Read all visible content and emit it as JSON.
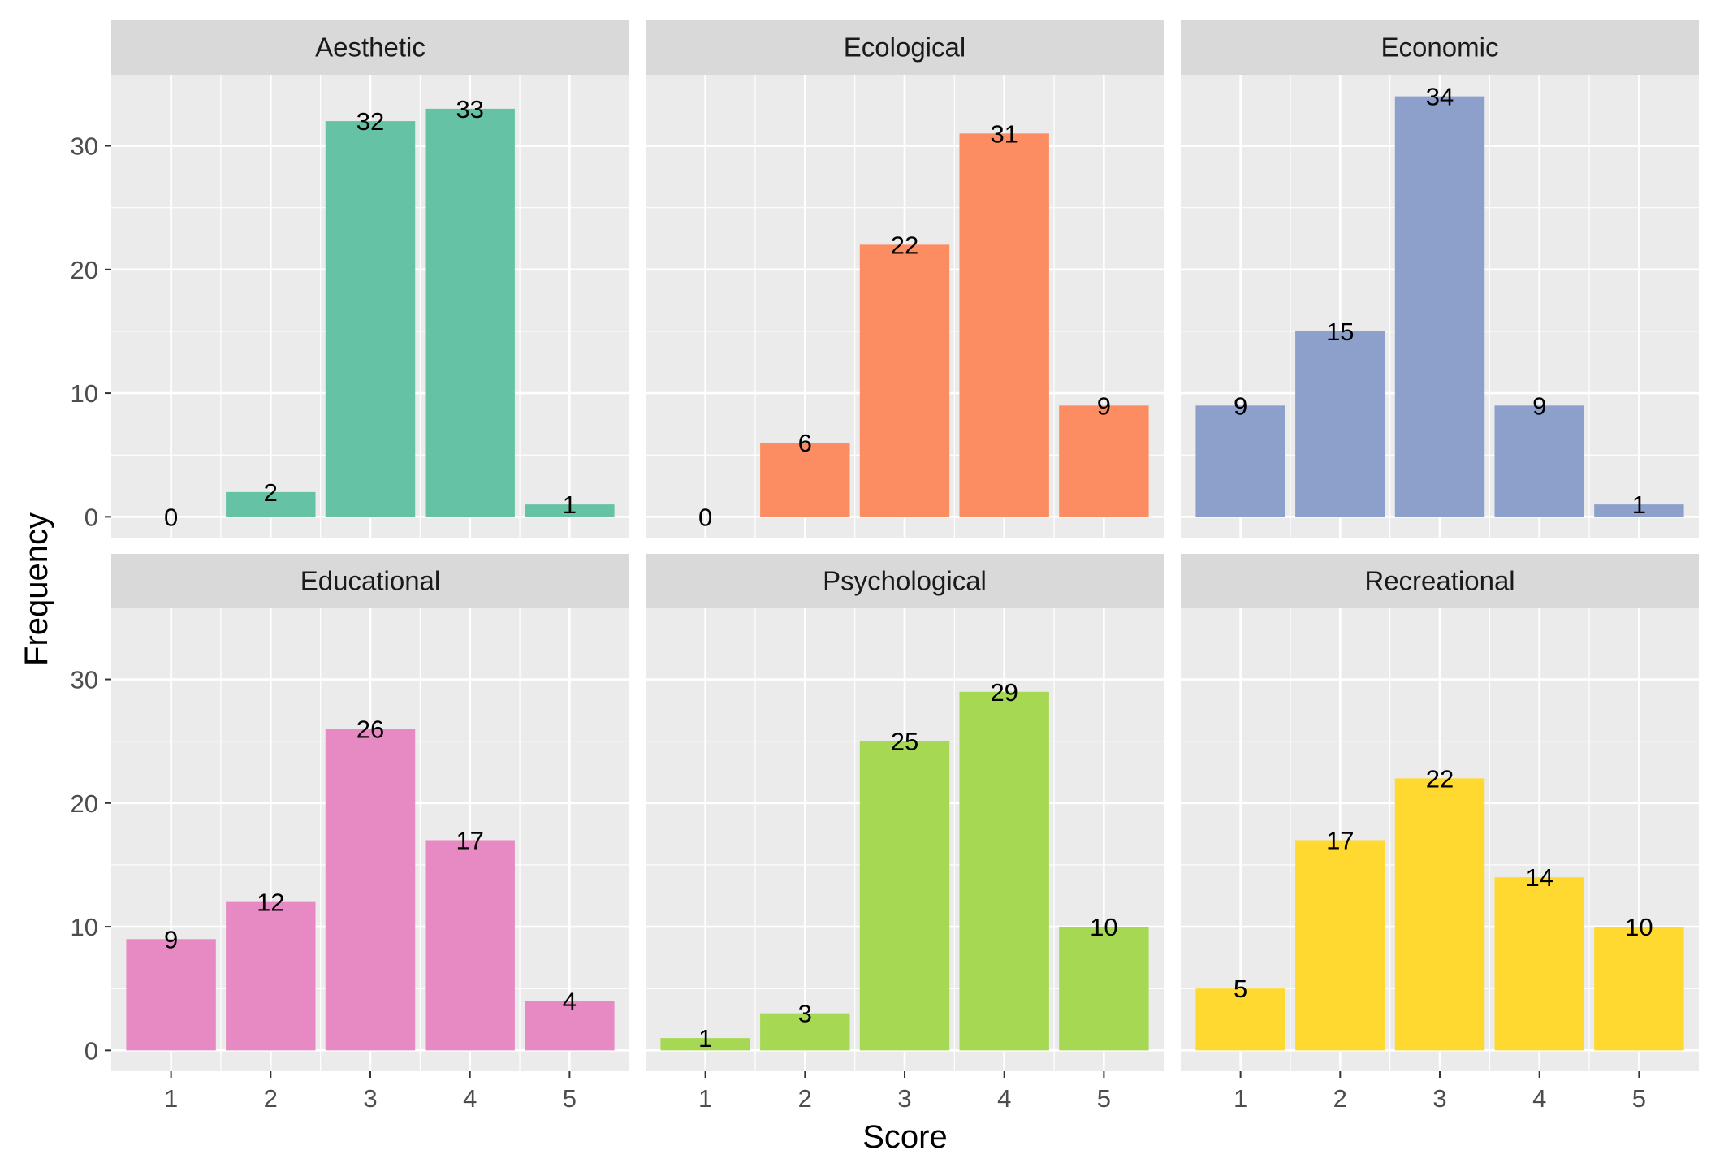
{
  "chart_data": {
    "type": "bar",
    "facet_layout": "2 rows x 3 columns",
    "xlabel": "Score",
    "ylabel": "Frequency",
    "categories": [
      "1",
      "2",
      "3",
      "4",
      "5"
    ],
    "ylim": [
      0,
      35
    ],
    "yticks": [
      0,
      10,
      20,
      30
    ],
    "grid": true,
    "panels": [
      {
        "name": "Aesthetic",
        "color": "#66C2A5",
        "values": [
          0,
          2,
          32,
          33,
          1
        ]
      },
      {
        "name": "Ecological",
        "color": "#FC8D62",
        "values": [
          0,
          6,
          22,
          31,
          9
        ]
      },
      {
        "name": "Economic",
        "color": "#8DA0CB",
        "values": [
          9,
          15,
          34,
          9,
          1
        ]
      },
      {
        "name": "Educational",
        "color": "#E78AC3",
        "values": [
          9,
          12,
          26,
          17,
          4
        ]
      },
      {
        "name": "Psychological",
        "color": "#A6D854",
        "values": [
          1,
          3,
          25,
          29,
          10
        ]
      },
      {
        "name": "Recreational",
        "color": "#FFD92F",
        "values": [
          5,
          17,
          22,
          14,
          10
        ]
      }
    ]
  },
  "style": {
    "panel_background": "#EBEBEB",
    "strip_background": "#D9D9D9",
    "grid_color": "#FFFFFF",
    "tick_text_color": "#4D4D4D"
  }
}
